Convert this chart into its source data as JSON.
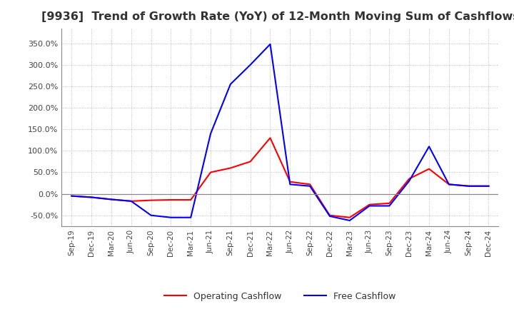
{
  "title": "[9936]  Trend of Growth Rate (YoY) of 12-Month Moving Sum of Cashflows",
  "title_fontsize": 11.5,
  "ylim": [
    -0.75,
    3.85
  ],
  "yticks": [
    -0.5,
    0.0,
    0.5,
    1.0,
    1.5,
    2.0,
    2.5,
    3.0,
    3.5
  ],
  "ytick_labels": [
    "-50.0%",
    "0.0%",
    "50.0%",
    "100.0%",
    "150.0%",
    "200.0%",
    "250.0%",
    "300.0%",
    "350.0%"
  ],
  "background_color": "#ffffff",
  "grid_color": "#aaaaaa",
  "dates": [
    "Sep-19",
    "Dec-19",
    "Mar-20",
    "Jun-20",
    "Sep-20",
    "Dec-20",
    "Mar-21",
    "Jun-21",
    "Sep-21",
    "Dec-21",
    "Mar-22",
    "Jun-22",
    "Sep-22",
    "Dec-22",
    "Mar-23",
    "Jun-23",
    "Sep-23",
    "Dec-23",
    "Mar-24",
    "Jun-24",
    "Sep-24",
    "Dec-24"
  ],
  "operating_cashflow": [
    -0.05,
    -0.08,
    -0.13,
    -0.17,
    -0.15,
    -0.14,
    -0.14,
    0.5,
    0.6,
    0.75,
    1.3,
    0.28,
    0.22,
    -0.5,
    -0.55,
    -0.25,
    -0.22,
    0.35,
    0.58,
    0.22,
    0.18,
    0.18
  ],
  "free_cashflow": [
    -0.05,
    -0.08,
    -0.13,
    -0.17,
    -0.5,
    -0.55,
    -0.55,
    1.4,
    2.55,
    3.0,
    3.48,
    0.22,
    0.18,
    -0.52,
    -0.62,
    -0.28,
    -0.28,
    0.3,
    1.1,
    0.22,
    0.18,
    0.18
  ],
  "operating_color": "#ff0000",
  "free_color": "#0000ff",
  "line_width": 1.5
}
